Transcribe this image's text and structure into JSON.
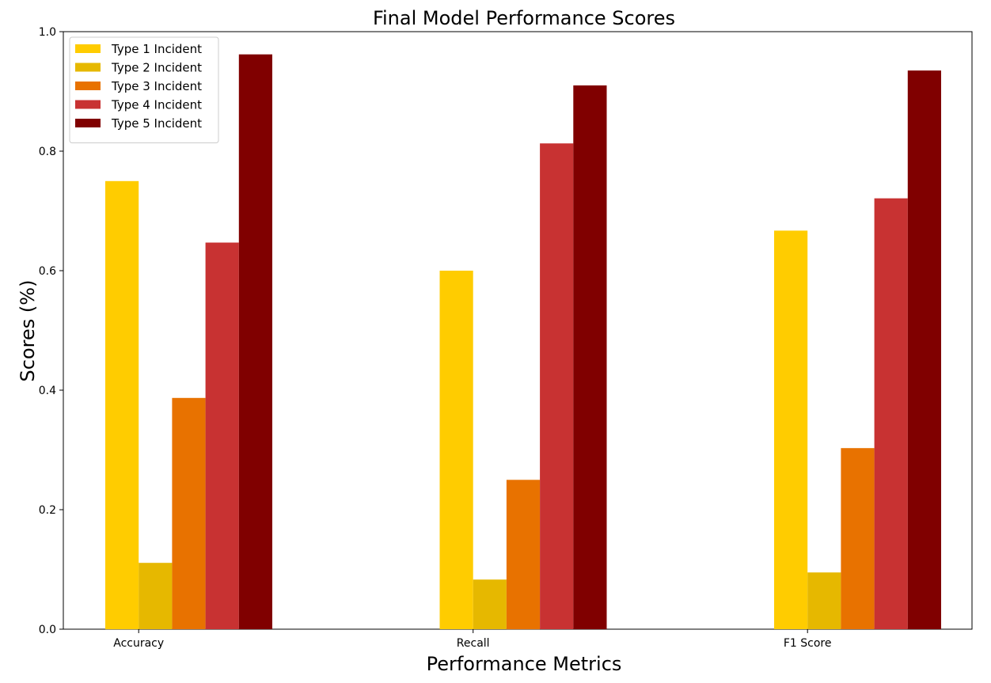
{
  "chart_data": {
    "type": "bar",
    "title": "Final Model Performance Scores",
    "xlabel": "Performance Metrics",
    "ylabel": "Scores (%)",
    "categories": [
      "Accuracy",
      "Recall",
      "F1 Score"
    ],
    "ylim": [
      0,
      1.0
    ],
    "yticks": [
      "0.0",
      "0.2",
      "0.4",
      "0.6",
      "0.8",
      "1.0"
    ],
    "grid": false,
    "legend_position": "top-left",
    "series": [
      {
        "name": "Type 1 Incident",
        "color": "#ffcc00",
        "values": [
          0.75,
          0.6,
          0.667
        ]
      },
      {
        "name": "Type 2 Incident",
        "color": "#e6b800",
        "values": [
          0.111,
          0.083,
          0.095
        ]
      },
      {
        "name": "Type 3 Incident",
        "color": "#e87200",
        "values": [
          0.387,
          0.25,
          0.303
        ]
      },
      {
        "name": "Type 4 Incident",
        "color": "#c83232",
        "values": [
          0.647,
          0.813,
          0.721
        ]
      },
      {
        "name": "Type 5 Incident",
        "color": "#800000",
        "values": [
          0.962,
          0.91,
          0.935
        ]
      }
    ]
  }
}
